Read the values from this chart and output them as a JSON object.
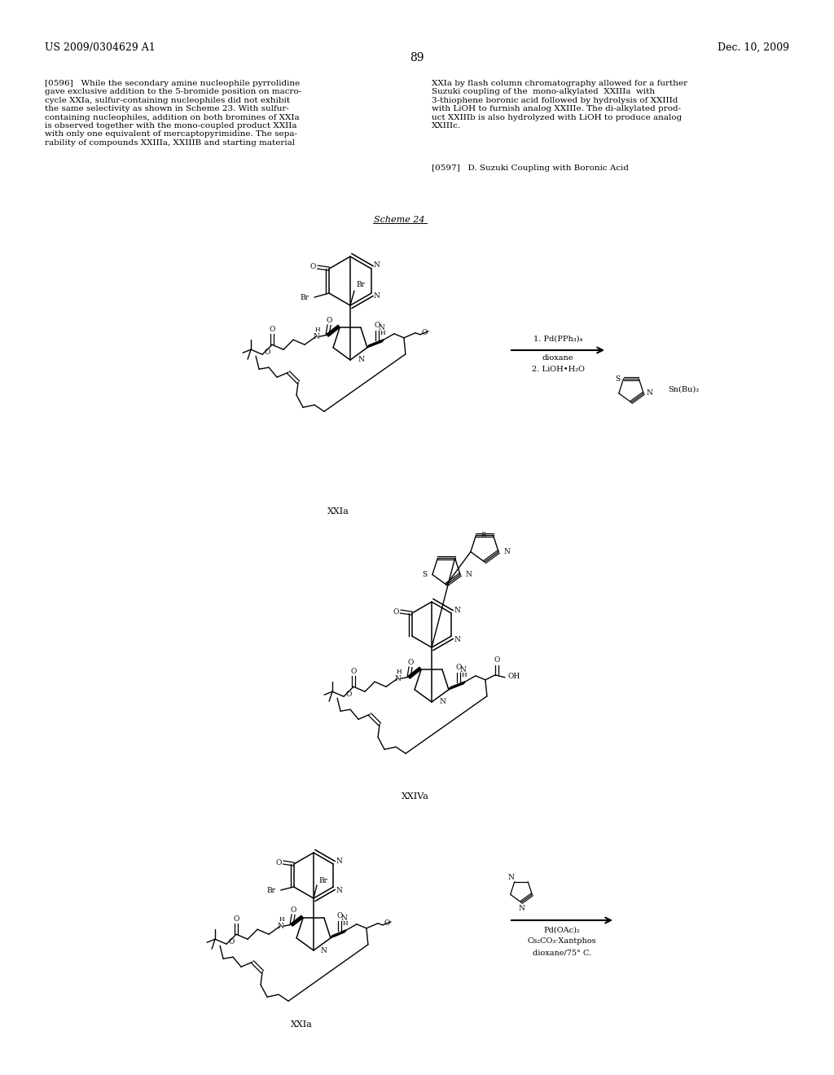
{
  "page_number": "89",
  "patent_number": "US 2009/0304629 A1",
  "patent_date": "Dec. 10, 2009",
  "background_color": "#ffffff",
  "text_color": "#000000",
  "left_column_text": "[0596]   While the secondary amine nucleophile pyrrolidine\ngave exclusive addition to the 5-bromide position on macro-\ncycle XXIa, sulfur-containing nucleophiles did not exhibit\nthe same selectivity as shown in Scheme 23. With sulfur-\ncontaining nucleophiles, addition on both bromines of XXIa\nis observed together with the mono-coupled product XXIIa\nwith only one equivalent of mercaptopyrimidine. The sepa-\nrability of compounds XXIIIa, XXIIIB and starting material",
  "right_column_text_1": "XXIa by flash column chromatography allowed for a further\nSuzuki coupling of the  mono-alkylated  XXIIIa  with\n3-thiophene boronic acid followed by hydrolysis of XXIIId\nwith LiOH to furnish analog XXIIIe. The di-alkylated prod-\nuct XXIIIb is also hydrolyzed with LiOH to produce analog\nXXIIIc.",
  "right_column_text_2": "[0597]   D. Suzuki Coupling with Boronic Acid",
  "scheme_label": "Scheme 24",
  "label_1": "XXIa",
  "label_2": "XXIVa",
  "label_3": "XXIa",
  "cond1_a": "1. Pd(PPh₃)₄",
  "cond1_b": "dioxane",
  "cond1_c": "2. LiOH•H₂O",
  "reagent_sn": "Sn(Bu)₃",
  "cond2_a": "Pd(OAc)₂",
  "cond2_b": "Cs₂CO₃·Xantphos",
  "cond2_c": "dioxane/75° C."
}
